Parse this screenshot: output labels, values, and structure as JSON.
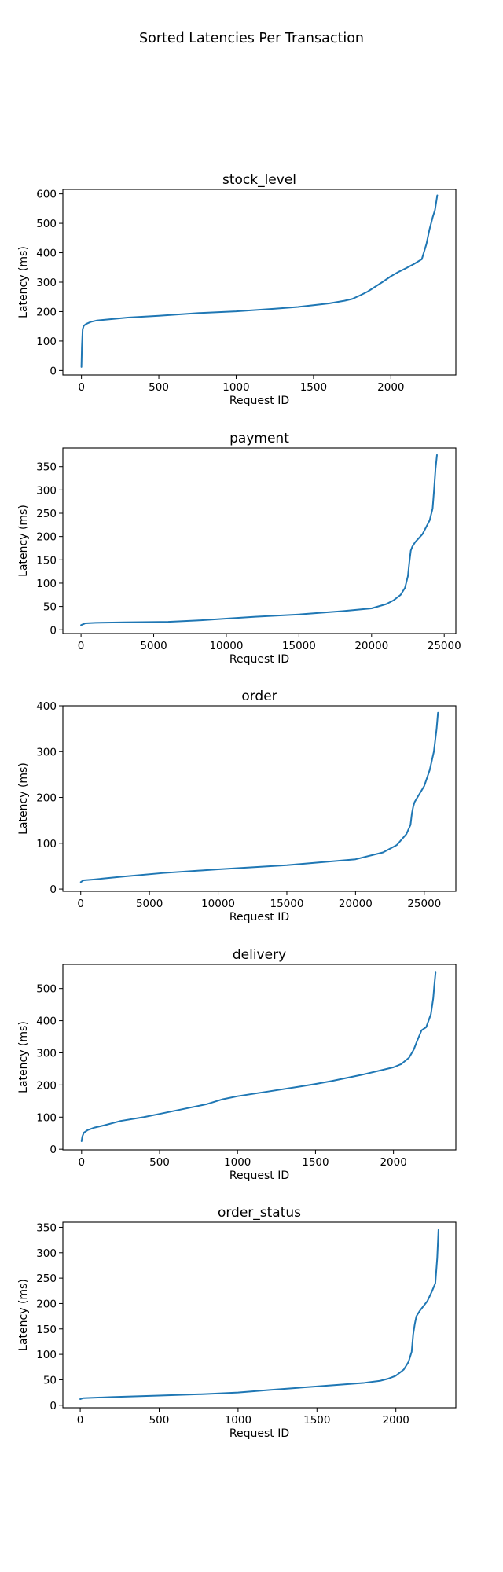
{
  "figure": {
    "title": "Sorted Latencies Per Transaction"
  },
  "colors": {
    "line": "#1f77b4",
    "axes": "#000000",
    "background": "#ffffff"
  },
  "chart_data": [
    {
      "type": "line",
      "title": "stock_level",
      "xlabel": "Request ID",
      "ylabel": "Latency (ms)",
      "xlim": [
        -120,
        2420
      ],
      "ylim": [
        -15,
        615
      ],
      "xticks": [
        0,
        500,
        1000,
        1500,
        2000
      ],
      "yticks": [
        0,
        100,
        200,
        300,
        400,
        500,
        600
      ],
      "grid": false,
      "series": [
        {
          "x": [
            0,
            3,
            8,
            15,
            30,
            60,
            100,
            200,
            300,
            500,
            750,
            1000,
            1250,
            1400,
            1500,
            1600,
            1700,
            1750,
            1800,
            1850,
            1900,
            1950,
            2000,
            2050,
            2100,
            2150,
            2200,
            2230,
            2250,
            2270,
            2285,
            2300
          ],
          "y": [
            12,
            80,
            140,
            152,
            158,
            165,
            170,
            175,
            180,
            186,
            195,
            201,
            210,
            216,
            222,
            228,
            237,
            243,
            255,
            268,
            285,
            302,
            320,
            335,
            348,
            362,
            378,
            430,
            480,
            520,
            545,
            595
          ]
        }
      ]
    },
    {
      "type": "line",
      "title": "payment",
      "xlabel": "Request ID",
      "ylabel": "Latency (ms)",
      "xlim": [
        -1250,
        25800
      ],
      "ylim": [
        -8,
        390
      ],
      "xticks": [
        0,
        5000,
        10000,
        15000,
        20000,
        25000
      ],
      "yticks": [
        0,
        50,
        100,
        150,
        200,
        250,
        300,
        350
      ],
      "grid": false,
      "series": [
        {
          "x": [
            0,
            300,
            1000,
            3000,
            6000,
            8000,
            10000,
            12000,
            15000,
            18000,
            20000,
            21000,
            21500,
            22000,
            22300,
            22500,
            22600,
            22700,
            22800,
            23000,
            23500,
            24000,
            24200,
            24300,
            24400,
            24500
          ],
          "y": [
            10,
            14,
            15,
            16,
            17,
            20,
            24,
            28,
            33,
            40,
            46,
            55,
            63,
            75,
            90,
            115,
            145,
            170,
            178,
            188,
            205,
            235,
            260,
            300,
            345,
            375
          ]
        }
      ]
    },
    {
      "type": "line",
      "title": "order",
      "xlabel": "Request ID",
      "ylabel": "Latency (ms)",
      "xlim": [
        -1300,
        27300
      ],
      "ylim": [
        -5,
        400
      ],
      "xticks": [
        0,
        5000,
        10000,
        15000,
        20000,
        25000
      ],
      "yticks": [
        0,
        100,
        200,
        300,
        400
      ],
      "grid": false,
      "series": [
        {
          "x": [
            0,
            200,
            1000,
            3000,
            6000,
            10000,
            15000,
            20000,
            22000,
            23000,
            23700,
            24000,
            24100,
            24200,
            24300,
            24600,
            25000,
            25400,
            25700,
            25900,
            26000
          ],
          "y": [
            15,
            19,
            21,
            27,
            35,
            43,
            52,
            65,
            80,
            96,
            120,
            140,
            165,
            180,
            190,
            205,
            225,
            260,
            300,
            350,
            385
          ]
        }
      ]
    },
    {
      "type": "line",
      "title": "delivery",
      "xlabel": "Request ID",
      "ylabel": "Latency (ms)",
      "xlim": [
        -120,
        2400
      ],
      "ylim": [
        -2,
        575
      ],
      "xticks": [
        0,
        500,
        1000,
        1500,
        2000
      ],
      "yticks": [
        0,
        100,
        200,
        300,
        400,
        500
      ],
      "grid": false,
      "series": [
        {
          "x": [
            0,
            5,
            15,
            40,
            80,
            150,
            250,
            400,
            500,
            650,
            800,
            900,
            1000,
            1200,
            1400,
            1500,
            1600,
            1800,
            2000,
            2050,
            2100,
            2130,
            2150,
            2180,
            2210,
            2240,
            2255,
            2262,
            2270
          ],
          "y": [
            25,
            40,
            52,
            60,
            67,
            75,
            88,
            100,
            110,
            125,
            140,
            155,
            165,
            180,
            195,
            203,
            212,
            232,
            255,
            265,
            285,
            310,
            335,
            370,
            380,
            420,
            470,
            510,
            550
          ]
        }
      ]
    },
    {
      "type": "line",
      "title": "order_status",
      "xlabel": "Request ID",
      "ylabel": "Latency (ms)",
      "xlim": [
        -110,
        2380
      ],
      "ylim": [
        -5,
        360
      ],
      "xticks": [
        0,
        500,
        1000,
        1500,
        2000
      ],
      "yticks": [
        0,
        50,
        100,
        150,
        200,
        250,
        300,
        350
      ],
      "grid": false,
      "series": [
        {
          "x": [
            0,
            20,
            200,
            500,
            800,
            1000,
            1200,
            1500,
            1800,
            1900,
            1950,
            2000,
            2050,
            2080,
            2100,
            2110,
            2120,
            2130,
            2150,
            2200,
            2230,
            2250,
            2262,
            2270
          ],
          "y": [
            12,
            14,
            16,
            19,
            22,
            25,
            30,
            37,
            44,
            48,
            52,
            58,
            70,
            85,
            105,
            140,
            160,
            175,
            185,
            205,
            225,
            240,
            290,
            345
          ]
        }
      ]
    }
  ]
}
